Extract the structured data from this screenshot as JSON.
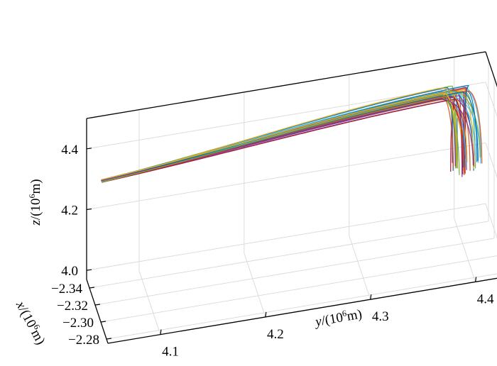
{
  "chart_data": {
    "type": "line3d",
    "title": "",
    "xlabel": {
      "var": "x",
      "rest": "/(10",
      "exp": "6",
      "unit": "m)"
    },
    "ylabel": {
      "var": "y",
      "rest": "/(10",
      "exp": "6",
      "unit": "m)"
    },
    "zlabel": {
      "var": "z",
      "rest": "/(10",
      "exp": "6",
      "unit": "m)"
    },
    "x_ticks": [
      "−2.34",
      "−2.32",
      "−2.30",
      "−2.28"
    ],
    "y_ticks": [
      "4.1",
      "4.2",
      "4.3",
      "4.4"
    ],
    "z_ticks": [
      "4.0",
      "4.2",
      "4.4"
    ],
    "xlim": [
      -2.35,
      -2.275
    ],
    "ylim": [
      4.05,
      4.43
    ],
    "zlim": [
      3.97,
      4.5
    ],
    "grid": true,
    "series_count": 40,
    "launch_point": {
      "x": -2.335,
      "y": 4.06,
      "z": 4.33
    },
    "apex_region": {
      "y": [
        4.38,
        4.41
      ],
      "z": [
        4.42,
        4.46
      ]
    },
    "impact_region": {
      "y": [
        4.39,
        4.42
      ],
      "z": [
        4.17,
        4.23
      ]
    },
    "colors": [
      "#0072BD",
      "#D95319",
      "#EDB120",
      "#7E2F8E",
      "#77AC30",
      "#4DBEEE",
      "#A2142F"
    ]
  }
}
